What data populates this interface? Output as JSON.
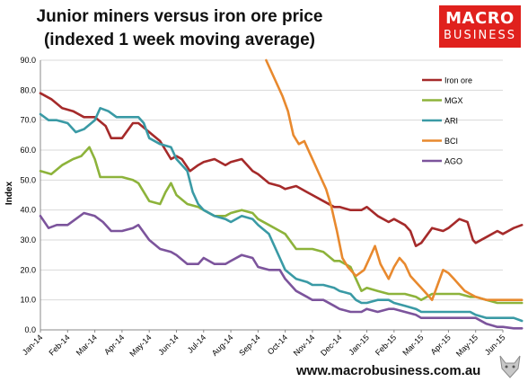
{
  "title_lines": [
    "Junior miners versus iron ore price",
    "(indexed 1 week moving average)"
  ],
  "logo": {
    "line1": "MACRO",
    "line2": "BUSINESS"
  },
  "footer_url": "www.macrobusiness.com.au",
  "chart_data": {
    "type": "line",
    "ylabel": "Index",
    "ylim": [
      0,
      90
    ],
    "yticks": [
      "0.0",
      "10.0",
      "20.0",
      "30.0",
      "40.0",
      "50.0",
      "60.0",
      "70.0",
      "80.0",
      "90.0"
    ],
    "xticks": [
      "Jan-14",
      "Feb-14",
      "Mar-14",
      "Apr-14",
      "May-14",
      "Jun-14",
      "Jul-14",
      "Aug-14",
      "Sep-14",
      "Oct-14",
      "Nov-14",
      "Dec-14",
      "Jan-15",
      "Feb-15",
      "Mar-15",
      "Apr-15",
      "May-15",
      "Jun-15"
    ],
    "x_unit": "months since Jan-14",
    "grid": "horizontal",
    "legend_position": "right",
    "series": [
      {
        "name": "Iron ore",
        "color": "#a52a2a",
        "points": [
          [
            0,
            79
          ],
          [
            0.4,
            77
          ],
          [
            0.8,
            74
          ],
          [
            1.2,
            73
          ],
          [
            1.6,
            71
          ],
          [
            2,
            71
          ],
          [
            2.4,
            68
          ],
          [
            2.6,
            64
          ],
          [
            3,
            64
          ],
          [
            3.4,
            69
          ],
          [
            3.6,
            69
          ],
          [
            4,
            66
          ],
          [
            4.4,
            63
          ],
          [
            4.8,
            57
          ],
          [
            5,
            58
          ],
          [
            5.2,
            57
          ],
          [
            5.5,
            53
          ],
          [
            5.8,
            55
          ],
          [
            6,
            56
          ],
          [
            6.4,
            57
          ],
          [
            6.8,
            55
          ],
          [
            7,
            56
          ],
          [
            7.4,
            57
          ],
          [
            7.8,
            53
          ],
          [
            8,
            52
          ],
          [
            8.4,
            49
          ],
          [
            8.8,
            48
          ],
          [
            9,
            47
          ],
          [
            9.4,
            48
          ],
          [
            9.8,
            46
          ],
          [
            10,
            45
          ],
          [
            10.4,
            43
          ],
          [
            10.8,
            41
          ],
          [
            11,
            41
          ],
          [
            11.4,
            40
          ],
          [
            11.8,
            40
          ],
          [
            12,
            41
          ],
          [
            12.4,
            38
          ],
          [
            12.8,
            36
          ],
          [
            13,
            37
          ],
          [
            13.4,
            35
          ],
          [
            13.6,
            33
          ],
          [
            13.8,
            28
          ],
          [
            14,
            29
          ],
          [
            14.4,
            34
          ],
          [
            14.8,
            33
          ],
          [
            15,
            34
          ],
          [
            15.4,
            37
          ],
          [
            15.7,
            36
          ],
          [
            15.9,
            30
          ],
          [
            16,
            29
          ],
          [
            16.4,
            31
          ],
          [
            16.8,
            33
          ],
          [
            17,
            32
          ],
          [
            17.4,
            34
          ],
          [
            17.7,
            35
          ]
        ]
      },
      {
        "name": "MGX",
        "color": "#8db33b",
        "points": [
          [
            0,
            53
          ],
          [
            0.4,
            52
          ],
          [
            0.8,
            55
          ],
          [
            1.2,
            57
          ],
          [
            1.5,
            58
          ],
          [
            1.8,
            61
          ],
          [
            2,
            57
          ],
          [
            2.2,
            51
          ],
          [
            2.6,
            51
          ],
          [
            3,
            51
          ],
          [
            3.4,
            50
          ],
          [
            3.6,
            49
          ],
          [
            4,
            43
          ],
          [
            4.4,
            42
          ],
          [
            4.6,
            46
          ],
          [
            4.8,
            49
          ],
          [
            5,
            45
          ],
          [
            5.4,
            42
          ],
          [
            5.8,
            41
          ],
          [
            6,
            40
          ],
          [
            6.4,
            38
          ],
          [
            6.8,
            38
          ],
          [
            7,
            39
          ],
          [
            7.4,
            40
          ],
          [
            7.8,
            39
          ],
          [
            8,
            37
          ],
          [
            8.4,
            35
          ],
          [
            8.8,
            33
          ],
          [
            9,
            32
          ],
          [
            9.4,
            27
          ],
          [
            9.8,
            27
          ],
          [
            10,
            27
          ],
          [
            10.4,
            26
          ],
          [
            10.8,
            23
          ],
          [
            11,
            23
          ],
          [
            11.4,
            21
          ],
          [
            11.6,
            17
          ],
          [
            11.8,
            13
          ],
          [
            12,
            14
          ],
          [
            12.4,
            13
          ],
          [
            12.8,
            12
          ],
          [
            13,
            12
          ],
          [
            13.4,
            12
          ],
          [
            13.8,
            11
          ],
          [
            14,
            10
          ],
          [
            14.4,
            12
          ],
          [
            14.8,
            12
          ],
          [
            15,
            12
          ],
          [
            15.4,
            12
          ],
          [
            15.8,
            11
          ],
          [
            16,
            11
          ],
          [
            16.4,
            10
          ],
          [
            16.8,
            9
          ],
          [
            17,
            9
          ],
          [
            17.4,
            9
          ],
          [
            17.7,
            9
          ]
        ]
      },
      {
        "name": "ARI",
        "color": "#3a9aa5",
        "points": [
          [
            0,
            72
          ],
          [
            0.3,
            70
          ],
          [
            0.6,
            70
          ],
          [
            1,
            69
          ],
          [
            1.3,
            66
          ],
          [
            1.6,
            67
          ],
          [
            2,
            70
          ],
          [
            2.2,
            74
          ],
          [
            2.5,
            73
          ],
          [
            2.8,
            71
          ],
          [
            3,
            71
          ],
          [
            3.4,
            71
          ],
          [
            3.6,
            71
          ],
          [
            3.8,
            69
          ],
          [
            4,
            64
          ],
          [
            4.4,
            62
          ],
          [
            4.8,
            61
          ],
          [
            5,
            57
          ],
          [
            5.4,
            53
          ],
          [
            5.6,
            46
          ],
          [
            5.8,
            42
          ],
          [
            6,
            40
          ],
          [
            6.4,
            38
          ],
          [
            6.8,
            37
          ],
          [
            7,
            36
          ],
          [
            7.4,
            38
          ],
          [
            7.8,
            37
          ],
          [
            8,
            35
          ],
          [
            8.4,
            32
          ],
          [
            8.8,
            24
          ],
          [
            9,
            20
          ],
          [
            9.4,
            17
          ],
          [
            9.8,
            16
          ],
          [
            10,
            15
          ],
          [
            10.4,
            15
          ],
          [
            10.8,
            14
          ],
          [
            11,
            13
          ],
          [
            11.4,
            12
          ],
          [
            11.6,
            10
          ],
          [
            11.8,
            9
          ],
          [
            12,
            9
          ],
          [
            12.4,
            10
          ],
          [
            12.8,
            10
          ],
          [
            13,
            9
          ],
          [
            13.4,
            8
          ],
          [
            13.8,
            7
          ],
          [
            14,
            6
          ],
          [
            14.4,
            6
          ],
          [
            14.8,
            6
          ],
          [
            15,
            6
          ],
          [
            15.4,
            6
          ],
          [
            15.8,
            6
          ],
          [
            16,
            5
          ],
          [
            16.4,
            4
          ],
          [
            16.8,
            4
          ],
          [
            17,
            4
          ],
          [
            17.4,
            4
          ],
          [
            17.7,
            3
          ]
        ]
      },
      {
        "name": "BCI",
        "color": "#e8892e",
        "points": [
          [
            8.3,
            90
          ],
          [
            8.6,
            84
          ],
          [
            8.9,
            78
          ],
          [
            9.1,
            73
          ],
          [
            9.3,
            65
          ],
          [
            9.5,
            62
          ],
          [
            9.7,
            63
          ],
          [
            9.9,
            59
          ],
          [
            10.1,
            55
          ],
          [
            10.3,
            51
          ],
          [
            10.5,
            47
          ],
          [
            10.7,
            41
          ],
          [
            10.9,
            33
          ],
          [
            11.1,
            24
          ],
          [
            11.3,
            21
          ],
          [
            11.6,
            18
          ],
          [
            11.9,
            20
          ],
          [
            12.1,
            24
          ],
          [
            12.3,
            28
          ],
          [
            12.5,
            22
          ],
          [
            12.8,
            17
          ],
          [
            13,
            21
          ],
          [
            13.2,
            24
          ],
          [
            13.4,
            22
          ],
          [
            13.6,
            18
          ],
          [
            13.8,
            16
          ],
          [
            14,
            14
          ],
          [
            14.2,
            12
          ],
          [
            14.4,
            10
          ],
          [
            14.6,
            15
          ],
          [
            14.8,
            20
          ],
          [
            15,
            19
          ],
          [
            15.2,
            17
          ],
          [
            15.4,
            15
          ],
          [
            15.6,
            13
          ],
          [
            15.8,
            12
          ],
          [
            16,
            11
          ],
          [
            16.4,
            10
          ],
          [
            16.8,
            10
          ],
          [
            17,
            10
          ],
          [
            17.4,
            10
          ],
          [
            17.7,
            10
          ]
        ]
      },
      {
        "name": "AGO",
        "color": "#7c549c",
        "points": [
          [
            0,
            38
          ],
          [
            0.3,
            34
          ],
          [
            0.6,
            35
          ],
          [
            1,
            35
          ],
          [
            1.3,
            37
          ],
          [
            1.6,
            39
          ],
          [
            2,
            38
          ],
          [
            2.3,
            36
          ],
          [
            2.6,
            33
          ],
          [
            3,
            33
          ],
          [
            3.4,
            34
          ],
          [
            3.6,
            35
          ],
          [
            4,
            30
          ],
          [
            4.4,
            27
          ],
          [
            4.8,
            26
          ],
          [
            5,
            25
          ],
          [
            5.4,
            22
          ],
          [
            5.8,
            22
          ],
          [
            6,
            24
          ],
          [
            6.4,
            22
          ],
          [
            6.8,
            22
          ],
          [
            7,
            23
          ],
          [
            7.4,
            25
          ],
          [
            7.8,
            24
          ],
          [
            8,
            21
          ],
          [
            8.4,
            20
          ],
          [
            8.8,
            20
          ],
          [
            9,
            17
          ],
          [
            9.4,
            13
          ],
          [
            9.8,
            11
          ],
          [
            10,
            10
          ],
          [
            10.4,
            10
          ],
          [
            10.8,
            8
          ],
          [
            11,
            7
          ],
          [
            11.4,
            6
          ],
          [
            11.8,
            6
          ],
          [
            12,
            7
          ],
          [
            12.4,
            6
          ],
          [
            12.8,
            7
          ],
          [
            13,
            7
          ],
          [
            13.4,
            6
          ],
          [
            13.8,
            5
          ],
          [
            14,
            4
          ],
          [
            14.4,
            4
          ],
          [
            14.8,
            4
          ],
          [
            15,
            4
          ],
          [
            15.4,
            4
          ],
          [
            15.8,
            4
          ],
          [
            16,
            4
          ],
          [
            16.4,
            2
          ],
          [
            16.8,
            1
          ],
          [
            17,
            1
          ],
          [
            17.4,
            0.5
          ],
          [
            17.7,
            0.5
          ]
        ]
      }
    ]
  }
}
